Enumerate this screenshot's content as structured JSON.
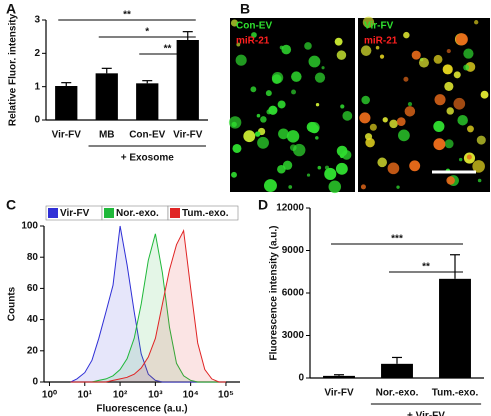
{
  "chart_data": [
    {
      "type": "bar",
      "panel": "A",
      "ylabel": "Relative Fluor. intensity",
      "categories": [
        "Vir-FV",
        "MB",
        "Con-EV",
        "Vir-FV"
      ],
      "values": [
        1.02,
        1.4,
        1.1,
        2.4
      ],
      "errors": [
        0.1,
        0.15,
        0.08,
        0.25
      ],
      "color": "#000000",
      "ylim": [
        0,
        3
      ],
      "yticks": [
        0,
        1,
        2,
        3
      ],
      "group": {
        "label": "+ Exosome",
        "categories": [
          1,
          2,
          3
        ]
      },
      "brackets": [
        {
          "label": "**",
          "categories": [
            0,
            3
          ]
        },
        {
          "label": "*",
          "categories": [
            1,
            3
          ]
        },
        {
          "label": "**",
          "categories": [
            2,
            3
          ]
        }
      ]
    },
    {
      "type": "area",
      "panel": "C",
      "ylabel": "Counts",
      "xlabel": "Fluorescence (a.u.)",
      "xscale": "log",
      "x": [
        4,
        6,
        10,
        16,
        25,
        40,
        63,
        100,
        158,
        251,
        398,
        631,
        1000,
        1585,
        2512,
        3981,
        6310,
        10000,
        15849,
        25119,
        39811,
        63096,
        100000
      ],
      "series": [
        {
          "name": "Vir-FV",
          "color": "#2f2fd6",
          "values": [
            0,
            2,
            6,
            14,
            28,
            45,
            62,
            100,
            75,
            45,
            18,
            5,
            1,
            0,
            0,
            0,
            0,
            0,
            0,
            0,
            0,
            0,
            0
          ]
        },
        {
          "name": "Nor.-exo.",
          "color": "#1fb83a",
          "values": [
            0,
            0,
            0,
            0,
            1,
            2,
            4,
            8,
            15,
            28,
            50,
            78,
            95,
            70,
            35,
            12,
            4,
            1,
            0,
            0,
            0,
            0,
            0
          ]
        },
        {
          "name": "Tum.-exo.",
          "color": "#e02424",
          "values": [
            0,
            0,
            0,
            0,
            0,
            0,
            1,
            2,
            3,
            5,
            9,
            16,
            28,
            50,
            72,
            88,
            97,
            60,
            25,
            8,
            2,
            0,
            0
          ]
        }
      ],
      "xlim": [
        0.7,
        250000
      ],
      "xticks": [
        {
          "value": 1,
          "label": "10⁰"
        },
        {
          "value": 10,
          "label": "10¹"
        },
        {
          "value": 100,
          "label": "10²"
        },
        {
          "value": 1000,
          "label": "10³"
        },
        {
          "value": 10000,
          "label": "10⁴"
        },
        {
          "value": 100000,
          "label": "10⁵"
        }
      ],
      "ylim": [
        0,
        100
      ],
      "yticks": [
        0,
        20,
        40,
        60,
        80,
        100
      ],
      "legend": "top"
    },
    {
      "type": "bar",
      "panel": "D",
      "ylabel": "Fluorescence intensity (a.u.)",
      "categories": [
        "Vir-FV",
        "Nor.-exo.",
        "Tum.-exo."
      ],
      "values": [
        150,
        1000,
        7000
      ],
      "errors": [
        80,
        450,
        1700
      ],
      "color": "#000000",
      "ylim": [
        0,
        12000
      ],
      "yticks": [
        0,
        3000,
        6000,
        9000,
        12000
      ],
      "group": {
        "label": "+ Vir-FV",
        "categories": [
          1,
          2
        ]
      },
      "brackets": [
        {
          "label": "***",
          "categories": [
            0,
            2
          ]
        },
        {
          "label": "**",
          "categories": [
            1,
            2
          ]
        }
      ]
    }
  ],
  "figure_b": {
    "panel": "B",
    "panes": [
      {
        "title": "Con-EV",
        "subtitle": "miR-21"
      },
      {
        "title": "Vir-FV",
        "subtitle": "miR-21"
      }
    ]
  }
}
